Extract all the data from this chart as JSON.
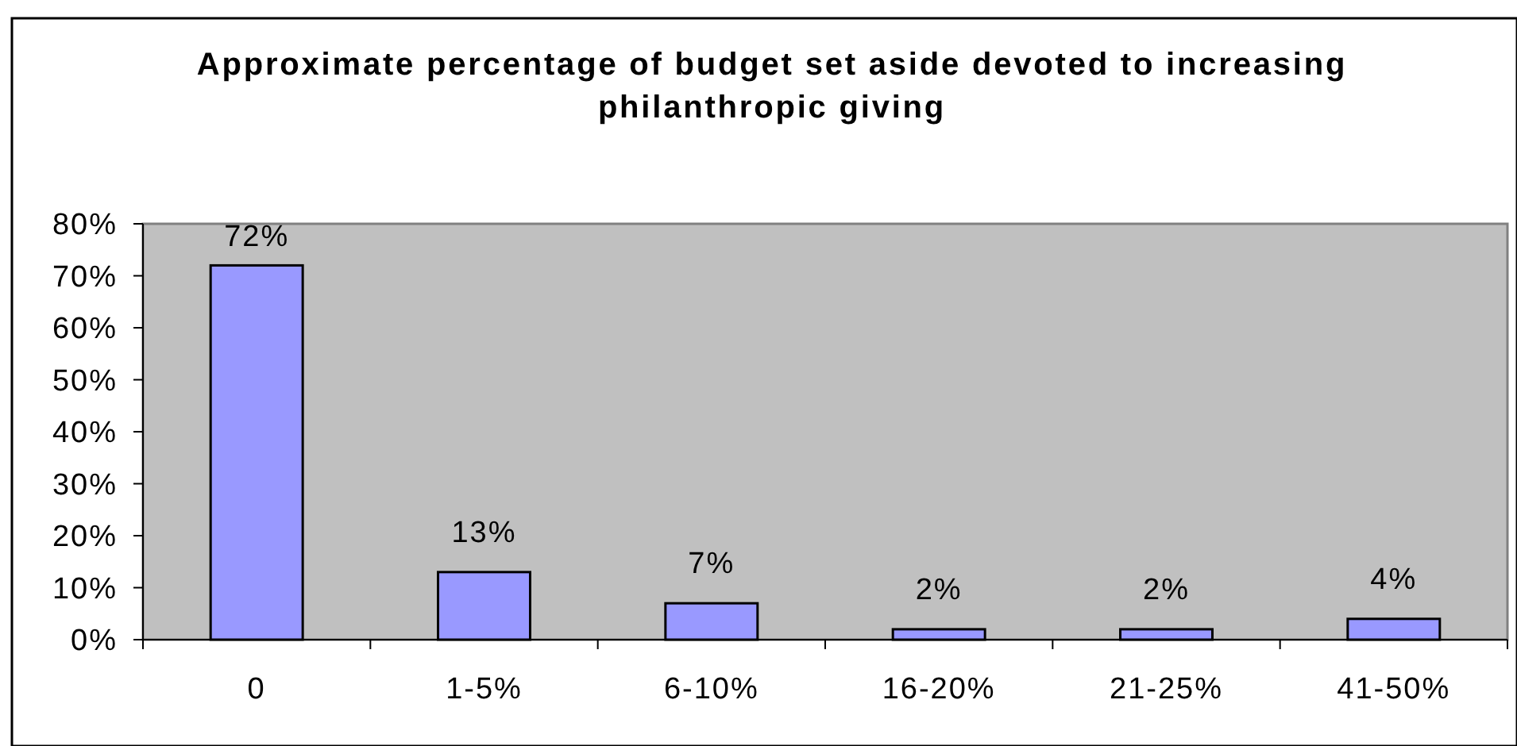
{
  "chart_data": {
    "type": "bar",
    "title": "Approximate percentage of budget set aside devoted to increasing\nphilanthropic giving",
    "categories": [
      "0",
      "1-5%",
      "6-10%",
      "16-20%",
      "21-25%",
      "41-50%"
    ],
    "values": [
      72,
      13,
      7,
      2,
      2,
      4
    ],
    "color": "#9999ff",
    "ylim": [
      0,
      80
    ],
    "yticks": [
      {
        "value": 0,
        "label": "0%"
      },
      {
        "value": 10,
        "label": "10%"
      },
      {
        "value": 20,
        "label": "20%"
      },
      {
        "value": 30,
        "label": "30%"
      },
      {
        "value": 40,
        "label": "40%"
      },
      {
        "value": 50,
        "label": "50%"
      },
      {
        "value": 60,
        "label": "60%"
      },
      {
        "value": 70,
        "label": "70%"
      },
      {
        "value": 80,
        "label": "80%"
      }
    ],
    "value_labels": [
      "72%",
      "13%",
      "7%",
      "2%",
      "2%",
      "4%"
    ]
  }
}
